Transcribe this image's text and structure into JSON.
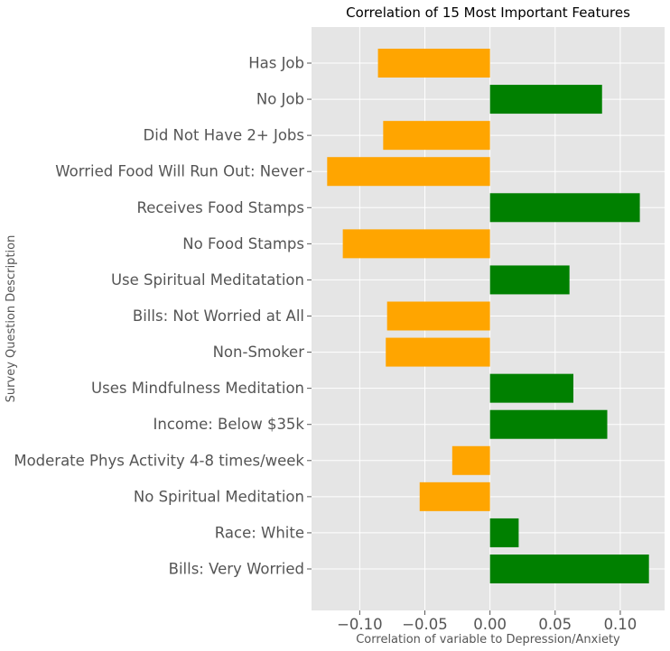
{
  "chart_data": {
    "type": "bar",
    "orientation": "horizontal",
    "title": "Correlation of 15 Most Important Features",
    "xlabel": "Correlation of variable to Depression/Anxiety",
    "ylabel": "Survey Question Description",
    "xlim": [
      -0.137,
      0.134
    ],
    "grid": true,
    "x_ticks": [
      -0.1,
      -0.05,
      0.0,
      0.05,
      0.1
    ],
    "x_tick_labels": [
      "−0.10",
      "−0.05",
      "0.00",
      "0.05",
      "0.10"
    ],
    "categories": [
      "Has Job",
      "No Job",
      "Did Not Have 2+ Jobs",
      "Worried Food Will Run Out: Never",
      "Receives Food Stamps",
      "No Food Stamps",
      "Use Spiritual Meditatation",
      "Bills: Not Worried at All",
      "Non-Smoker",
      "Uses Mindfulness Meditation",
      "Income: Below $35k",
      "Moderate Phys Activity 4-8 times/week",
      "No Spiritual Meditation",
      "Race: White",
      "Bills: Very Worried"
    ],
    "values": [
      -0.086,
      0.086,
      -0.082,
      -0.125,
      0.115,
      -0.113,
      0.061,
      -0.079,
      -0.08,
      0.064,
      0.09,
      -0.029,
      -0.054,
      0.022,
      0.122
    ],
    "colors": {
      "positive": "#008000",
      "negative": "#FFA500",
      "background": "#E5E5E5"
    }
  }
}
